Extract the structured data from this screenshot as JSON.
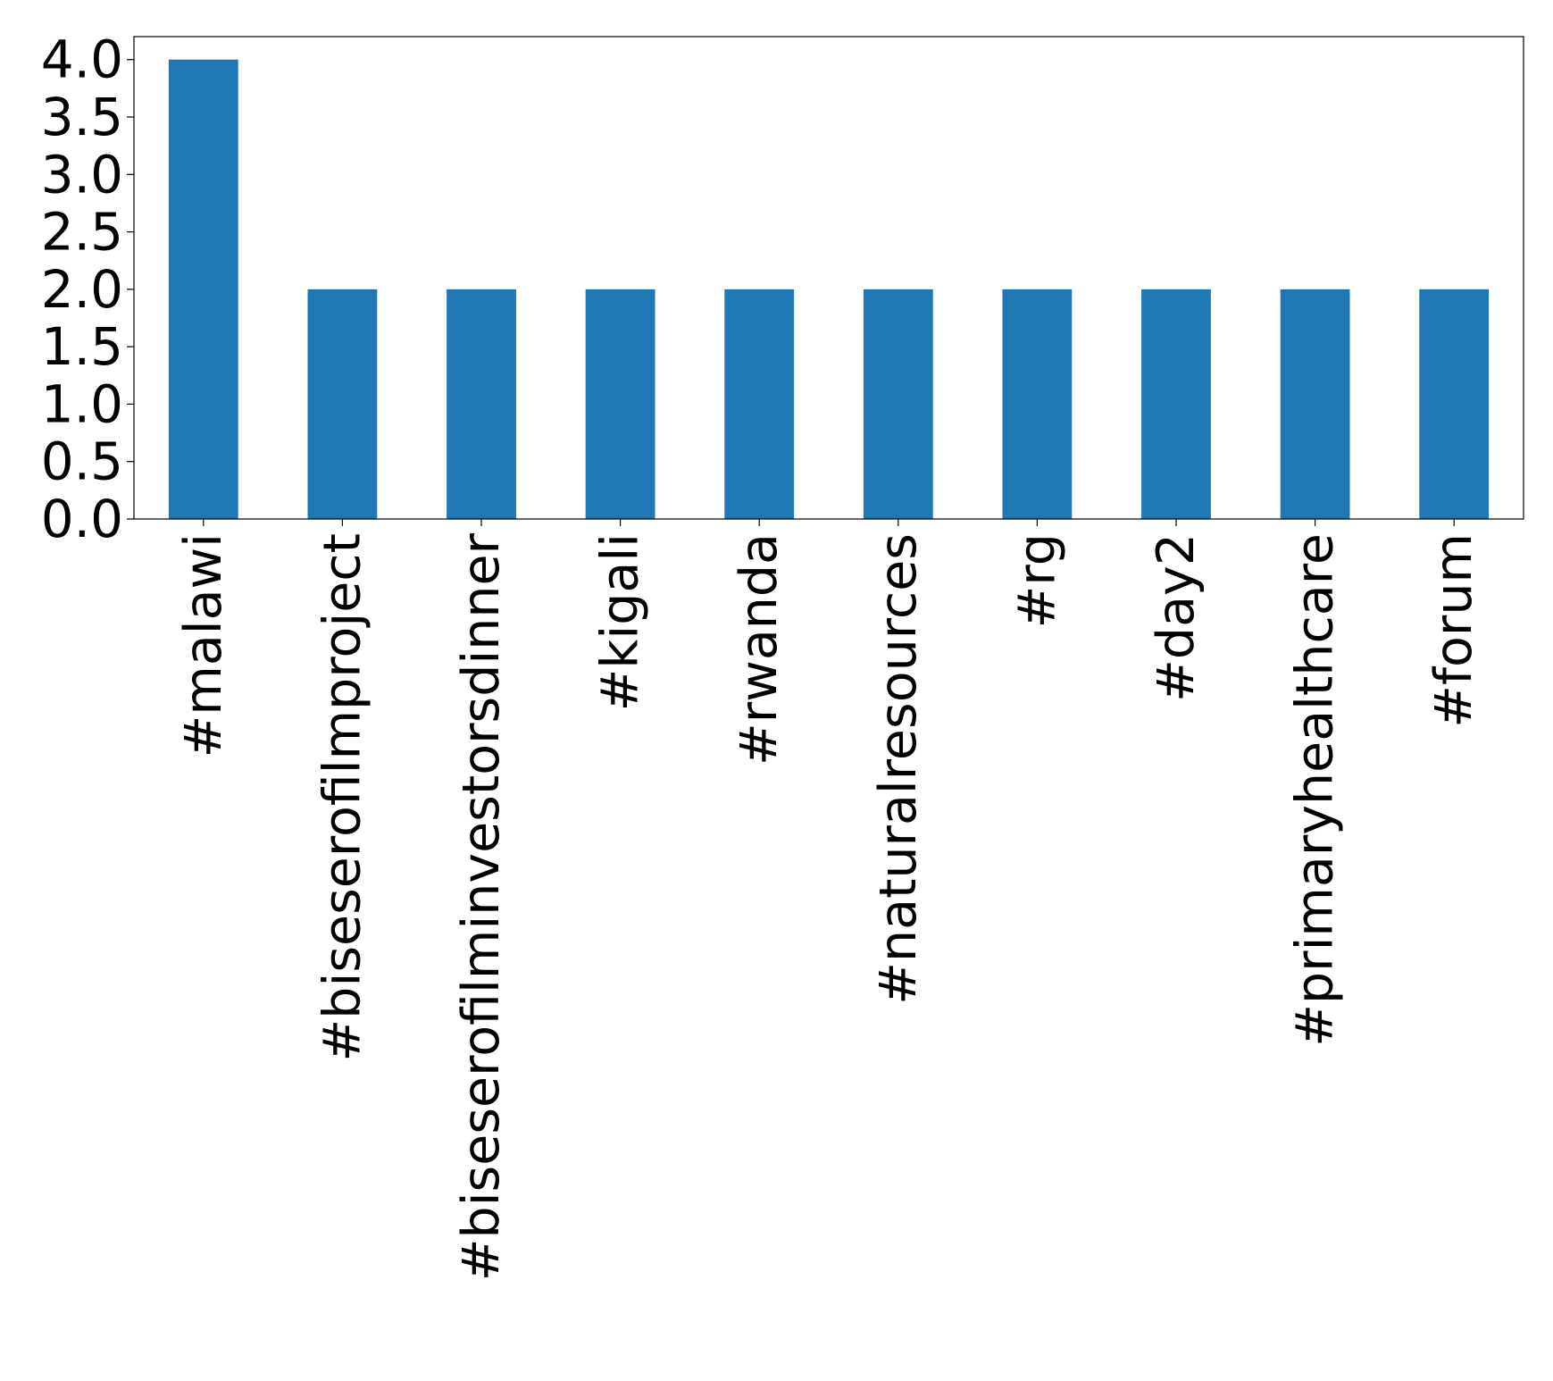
{
  "chart_data": {
    "type": "bar",
    "categories": [
      "#malawi",
      "#biseserofilmproject",
      "#biseserofilminvestorsdinner",
      "#kigali",
      "#rwanda",
      "#naturalresources",
      "#rg",
      "#day2",
      "#primaryhealthcare",
      "#forum"
    ],
    "values": [
      4,
      2,
      2,
      2,
      2,
      2,
      2,
      2,
      2,
      2
    ],
    "ylim": [
      0,
      4.2
    ],
    "yticks": [
      "0.0",
      "0.5",
      "1.0",
      "1.5",
      "2.0",
      "2.5",
      "3.0",
      "3.5",
      "4.0"
    ],
    "title": "",
    "xlabel": "",
    "ylabel": "",
    "grid": false,
    "bar_color": "#1f77b4"
  }
}
